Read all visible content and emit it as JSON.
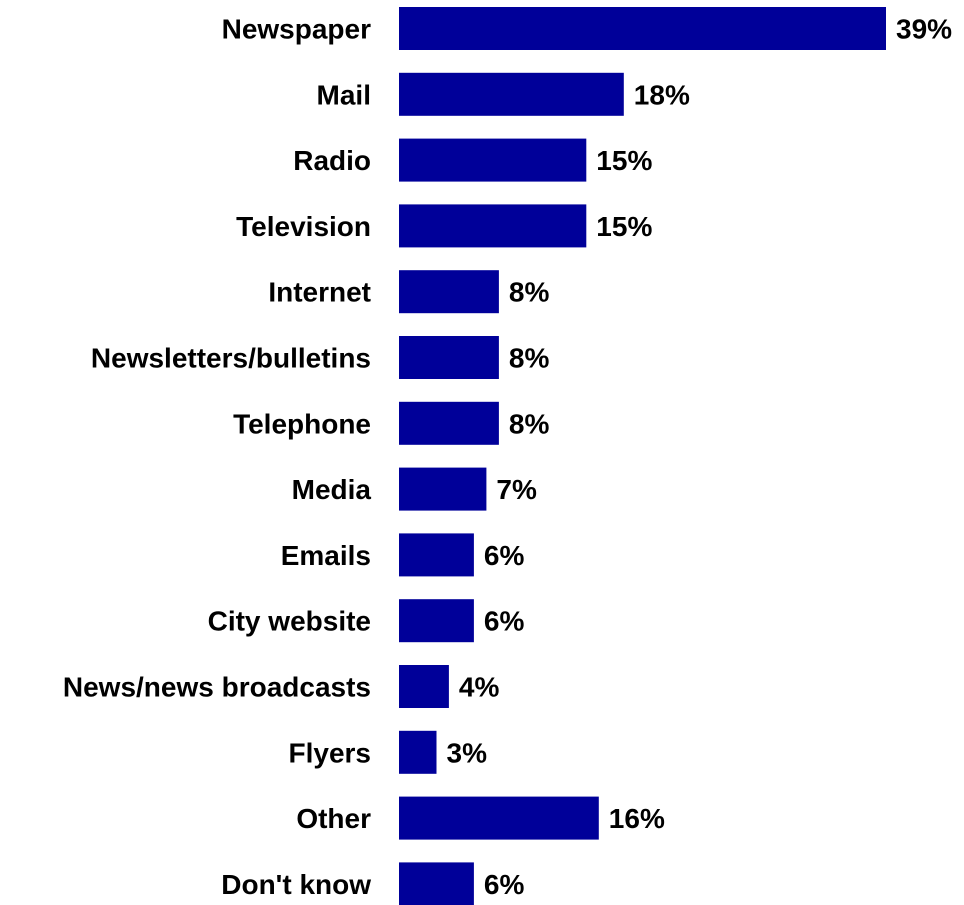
{
  "chart_data": {
    "type": "bar",
    "orientation": "horizontal",
    "categories": [
      "Newspaper",
      "Mail",
      "Radio",
      "Television",
      "Internet",
      "Newsletters/bulletins",
      "Telephone",
      "Media",
      "Emails",
      "City website",
      "News/news broadcasts",
      "Flyers",
      "Other",
      "Don't know"
    ],
    "values": [
      39,
      18,
      15,
      15,
      8,
      8,
      8,
      7,
      6,
      6,
      4,
      3,
      16,
      6
    ],
    "value_labels": [
      "39%",
      "18%",
      "15%",
      "15%",
      "8%",
      "8%",
      "8%",
      "7%",
      "6%",
      "6%",
      "4%",
      "3%",
      "16%",
      "6%"
    ],
    "unit": "%",
    "bar_color": "#000099",
    "grid": false,
    "axes_visible": false,
    "xlim": [
      0,
      39
    ]
  }
}
